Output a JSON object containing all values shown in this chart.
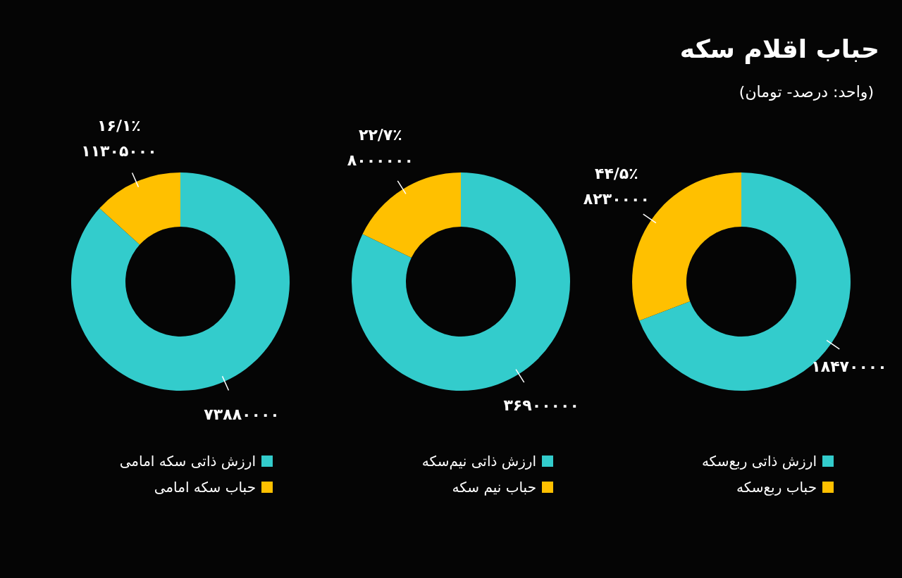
{
  "chart_data": [
    {
      "type": "donut",
      "title": "حباب اقلام سکه",
      "subtitle": "(واحد: درصد- تومان)",
      "categories": [
        "ارزش ذاتی ربع‌سکه",
        "حباب ربع‌سکه"
      ],
      "values": [
        18470000,
        8230000
      ],
      "colors": [
        "#33cccc",
        "#ffc000"
      ],
      "value_labels": [
        "۱۸۴۷۰۰۰۰",
        "۴۴/۵٪\n۸۲۳۰۰۰۰"
      ],
      "legend": "bottom"
    },
    {
      "type": "donut",
      "categories": [
        "ارزش ذاتی نیم‌سکه",
        "حباب نیم سکه"
      ],
      "values": [
        36900000,
        8000000
      ],
      "colors": [
        "#33cccc",
        "#ffc000"
      ],
      "value_labels": [
        "۳۶۹۰۰۰۰۰",
        "۲۲/۷٪\n۸۰۰۰۰۰۰"
      ],
      "legend": "bottom"
    },
    {
      "type": "donut",
      "categories": [
        "ارزش ذاتی سکه امامی",
        "حباب سکه امامی"
      ],
      "values": [
        73880000,
        11305000
      ],
      "colors": [
        "#33cccc",
        "#ffc000"
      ],
      "value_labels": [
        "۷۳۸۸۰۰۰۰",
        "۱۶/۱٪\n۱۱۳۰۵۰۰۰"
      ],
      "legend": "bottom"
    }
  ]
}
